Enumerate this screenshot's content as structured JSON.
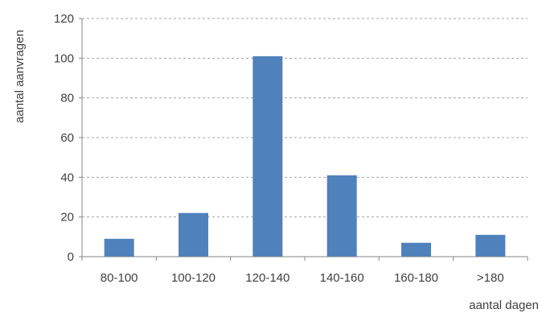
{
  "chart_data": {
    "type": "bar",
    "categories": [
      "80-100",
      "100-120",
      "120-140",
      "140-160",
      "160-180",
      ">180"
    ],
    "values": [
      9,
      22,
      101,
      41,
      7,
      11
    ],
    "title": "",
    "xlabel": "aantal dagen",
    "ylabel": "aantal aanvragen",
    "ylim": [
      0,
      120
    ],
    "yticks": [
      0,
      20,
      40,
      60,
      80,
      100,
      120
    ],
    "grid": true,
    "bar_color": "#4f81bd",
    "grid_color": "#a6a6a6",
    "axis_color": "#868686",
    "text_color": "#404040"
  }
}
